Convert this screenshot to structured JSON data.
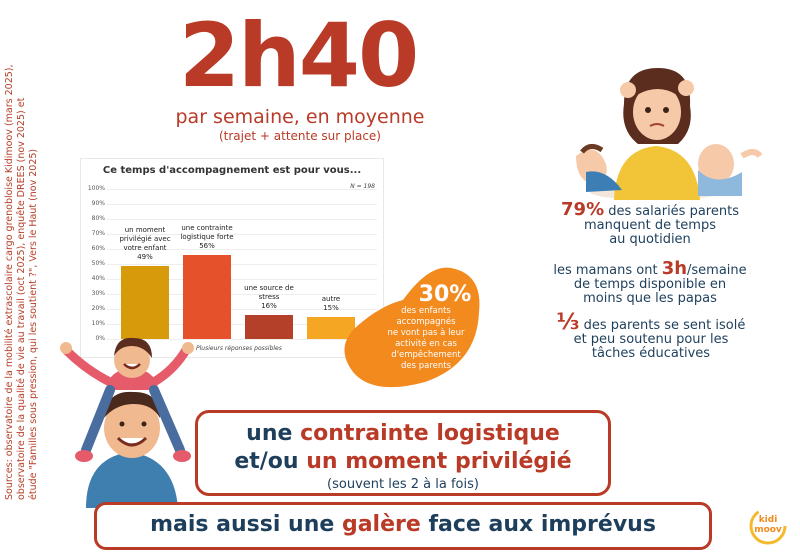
{
  "sources": {
    "line1": "Sources: observatoire de la mobilité extrascolaire cargo grenobloise Kidimoov (mars 2025),",
    "line2": "observatoire de la qualité de vie au travail (oct 2025), enquête DREES (nov 2025) et",
    "line3": "étude \"Familles sous pression, qui les soutient ?\", Vers le Haut (nov 2025)"
  },
  "headline": {
    "big": "2h40",
    "sub": "par semaine, en moyenne",
    "sub2": "(trajet + attente sur place)"
  },
  "chart_data": {
    "type": "bar",
    "title": "Ce temps d'accompagnement est pour vous...",
    "note": "N = 198",
    "footnote": "Plusieurs réponses possibles",
    "ylim": [
      0,
      100
    ],
    "yticks": [
      "0%",
      "10%",
      "20%",
      "30%",
      "40%",
      "50%",
      "60%",
      "70%",
      "80%",
      "90%",
      "100%"
    ],
    "categories": [
      "un moment privilégié avec votre enfant",
      "une contrainte logistique forte",
      "une source de stress",
      "autre"
    ],
    "values": [
      49,
      56,
      16,
      15
    ],
    "value_labels": [
      "49%",
      "56%",
      "16%",
      "15%"
    ],
    "label_lines": [
      [
        "un moment",
        "privilégié avec",
        "votre enfant",
        "49%"
      ],
      [
        "une contrainte",
        "logistique forte",
        "56%"
      ],
      [
        "une source de",
        "stress",
        "16%"
      ],
      [
        "autre",
        "15%"
      ]
    ],
    "colors": [
      "#d79a0a",
      "#e4512a",
      "#b5402a",
      "#f5a623"
    ],
    "grid": true
  },
  "blob": {
    "pct": "30%",
    "lines": [
      "des enfants",
      "accompagnés",
      "ne vont pas à leur",
      "activité en cas",
      "d'empêchement",
      "des parents"
    ]
  },
  "stats": {
    "s1_pct": "79%",
    "s1_a": "des salariés parents",
    "s1_b": "manquent de temps",
    "s1_c": "au quotidien",
    "s2_a": "les mamans ont",
    "s2_h": "3h",
    "s2_b": "/semaine",
    "s2_c": "de temps disponible en",
    "s2_d": "moins que les papas",
    "s3_frac": "⅓",
    "s3_a": "des parents se sent isolé",
    "s3_b": "et peu soutenu pour les",
    "s3_c": "tâches éducatives"
  },
  "banner1": {
    "w1": "une ",
    "w2": "contrainte logistique",
    "w3": "et/ou ",
    "w4": "un moment privilégié",
    "w5": "(souvent les 2 à la fois)"
  },
  "banner2": {
    "w1": "mais aussi une ",
    "w2": "galère",
    "w3": " face aux imprévus"
  },
  "logo": {
    "l1": "kidi",
    "l2": "moov"
  },
  "colors": {
    "rust": "#b93a26",
    "navy": "#1e3f5c",
    "orange": "#f28a1e"
  }
}
